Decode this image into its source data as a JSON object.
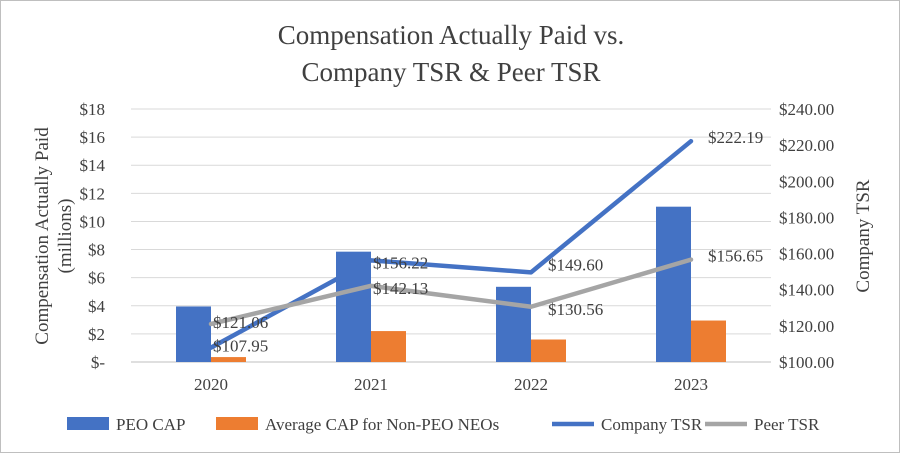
{
  "chart_data": {
    "type": "bar+line",
    "title_line1": "Compensation Actually Paid vs.",
    "title_line2": "Company  TSR & Peer TSR",
    "categories": [
      "2020",
      "2021",
      "2022",
      "2023"
    ],
    "y_left": {
      "label": "Compensation Actually Paid (millions)",
      "label_line1": "Compensation Actually Paid",
      "label_line2": "(millions)",
      "min": 0,
      "max": 18,
      "step": 2,
      "tick_labels": [
        "$-",
        "$2",
        "$4",
        "$6",
        "$8",
        "$10",
        "$12",
        "$14",
        "$16",
        "$18"
      ]
    },
    "y_right": {
      "label": "Company TSR",
      "min": 100,
      "max": 240,
      "step": 20,
      "tick_labels": [
        "$100.00",
        "$120.00",
        "$140.00",
        "$160.00",
        "$180.00",
        "$200.00",
        "$220.00",
        "$240.00"
      ]
    },
    "bar_series": [
      {
        "name": "PEO CAP",
        "color": "#4472C4",
        "values": [
          3.95,
          7.85,
          5.35,
          11.05
        ]
      },
      {
        "name": "Average CAP for Non-PEO NEOs",
        "color": "#ED7D31",
        "values": [
          0.35,
          2.2,
          1.6,
          2.95
        ]
      }
    ],
    "line_series": [
      {
        "name": "Company TSR",
        "color": "#4472C4",
        "values": [
          107.95,
          156.22,
          149.6,
          222.19
        ],
        "labels": [
          "$107.95",
          "$156.22",
          "$149.60",
          "$222.19"
        ]
      },
      {
        "name": "Peer TSR",
        "color": "#A5A5A5",
        "values": [
          121.06,
          142.13,
          130.56,
          156.65
        ],
        "labels": [
          "$121.06",
          "$142.13",
          "$130.56",
          "$156.65"
        ]
      }
    ],
    "legend": {
      "position": "bottom",
      "items": [
        {
          "name": "PEO CAP",
          "kind": "bar",
          "color": "#4472C4"
        },
        {
          "name": "Average CAP for Non-PEO NEOs",
          "kind": "bar",
          "color": "#ED7D31"
        },
        {
          "name": "Company TSR",
          "kind": "line",
          "color": "#4472C4"
        },
        {
          "name": "Peer TSR",
          "kind": "line",
          "color": "#A5A5A5"
        }
      ]
    },
    "grid": true,
    "grid_color": "#d9d9d9"
  }
}
